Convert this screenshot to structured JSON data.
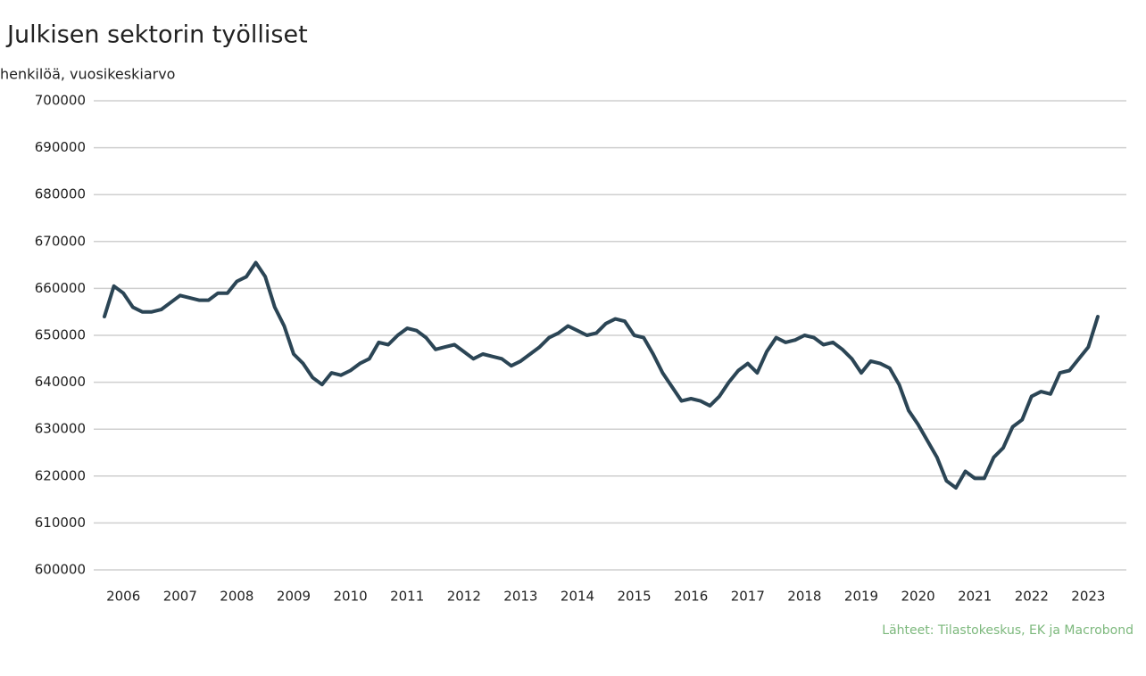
{
  "chart_data": {
    "type": "line",
    "title": "Julkisen sektorin työlliset",
    "y_label": "henkilöä, vuosikeskiarvo",
    "source": "Lähteet: Tilastokeskus, EK ja Macrobond",
    "categories": [
      null,
      null,
      "2006",
      null,
      null,
      null,
      null,
      null,
      "2007",
      null,
      null,
      null,
      null,
      null,
      "2008",
      null,
      null,
      null,
      null,
      null,
      "2009",
      null,
      null,
      null,
      null,
      null,
      "2010",
      null,
      null,
      null,
      null,
      null,
      "2011",
      null,
      null,
      null,
      null,
      null,
      "2012",
      null,
      null,
      null,
      null,
      null,
      "2013",
      null,
      null,
      null,
      null,
      null,
      "2014",
      null,
      null,
      null,
      null,
      null,
      "2015",
      null,
      null,
      null,
      null,
      null,
      "2016",
      null,
      null,
      null,
      null,
      null,
      "2017",
      null,
      null,
      null,
      null,
      null,
      "2018",
      null,
      null,
      null,
      null,
      null,
      "2019",
      null,
      null,
      null,
      null,
      null,
      "2020",
      null,
      null,
      null,
      null,
      null,
      "2021",
      null,
      null,
      null,
      null,
      null,
      "2022",
      null,
      null,
      null,
      null,
      null,
      "2023",
      null
    ],
    "series": [
      {
        "color": "#2b4555",
        "values": [
          654000,
          660500,
          659000,
          656000,
          655000,
          655000,
          655500,
          657000,
          658500,
          658000,
          657500,
          657500,
          659000,
          659000,
          661500,
          662500,
          665500,
          662500,
          656000,
          652000,
          646000,
          644000,
          641000,
          639500,
          642000,
          641500,
          642500,
          644000,
          645000,
          648500,
          648000,
          650000,
          651500,
          651000,
          649500,
          647000,
          647500,
          648000,
          646500,
          645000,
          646000,
          645500,
          645000,
          643500,
          644500,
          646000,
          647500,
          649500,
          650500,
          652000,
          651000,
          650000,
          650500,
          652500,
          653500,
          653000,
          650000,
          649500,
          646000,
          642000,
          639000,
          636000,
          636500,
          636000,
          635000,
          637000,
          640000,
          642500,
          644000,
          642000,
          646500,
          649500,
          648500,
          649000,
          650000,
          649500,
          648000,
          648500,
          647000,
          645000,
          642000,
          644500,
          644000,
          643000,
          639500,
          634000,
          631000,
          627500,
          624000,
          619000,
          617500,
          621000,
          619500,
          619500,
          624000,
          626000,
          630500,
          632000,
          637000,
          638000,
          637500,
          642000,
          642500,
          645000,
          647500,
          654000
        ]
      }
    ],
    "ylim": [
      600000,
      700000
    ],
    "yticks": [
      600000,
      610000,
      620000,
      630000,
      640000,
      650000,
      660000,
      670000,
      680000,
      690000,
      700000
    ],
    "grid": true
  }
}
